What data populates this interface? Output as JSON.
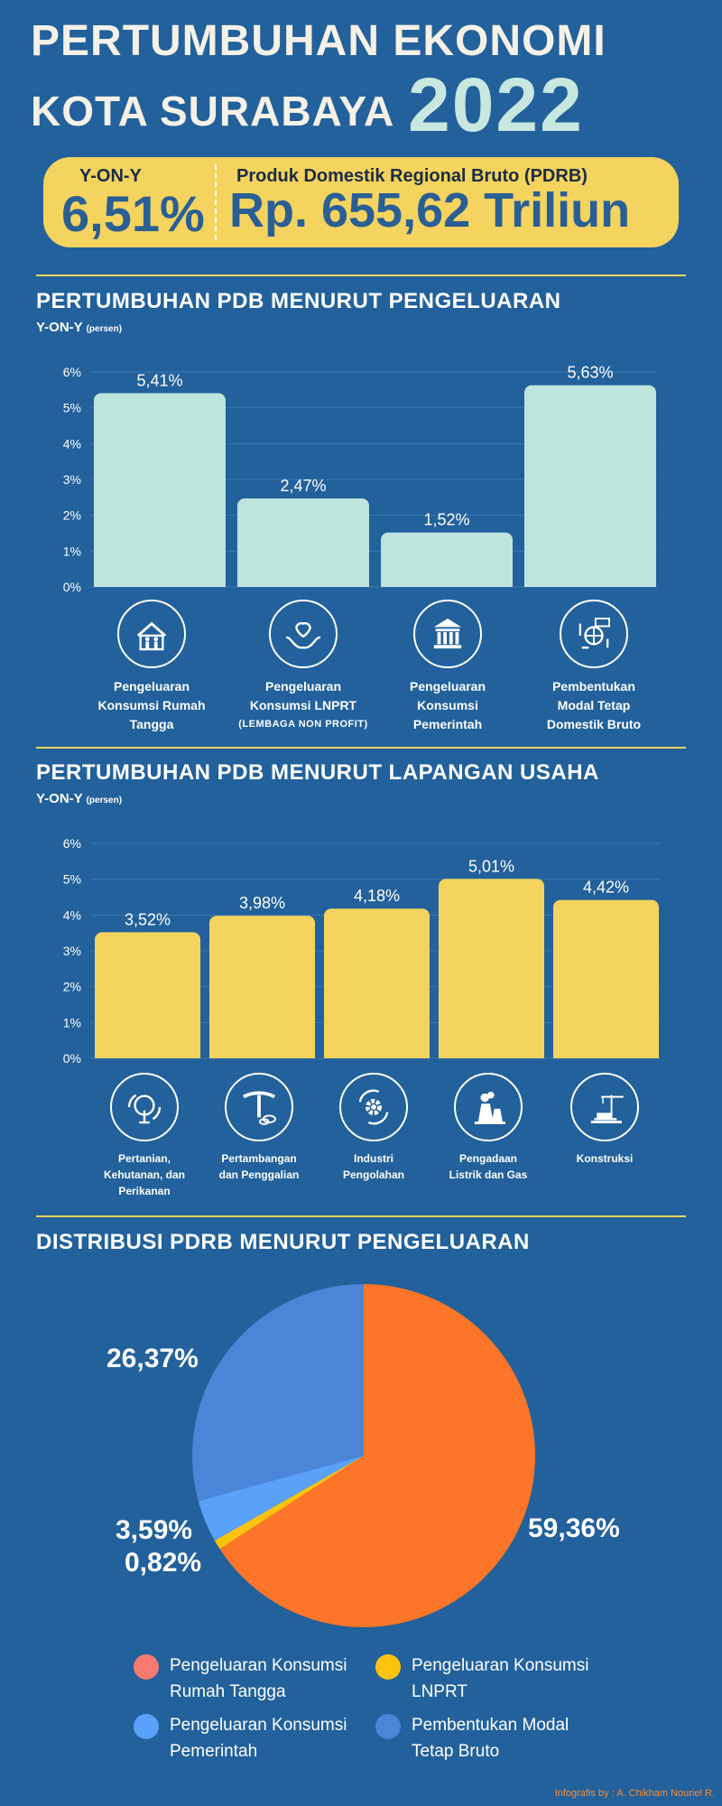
{
  "header": {
    "title_line1": "PERTUMBUHAN EKONOMI",
    "title_line2": "KOTA SURABAYA",
    "year": "2022"
  },
  "kpi": {
    "growth_label": "Y-ON-Y",
    "growth_value": "6,51%",
    "pdrb_label": "Produk Domestik Regional Bruto (PDRB)",
    "pdrb_value": "Rp. 655,62 Triliun"
  },
  "section1": {
    "title": "PERTUMBUHAN PDB MENURUT PENGELUARAN",
    "subtitle": "Y-ON-Y",
    "subtitle_note": "(persen)",
    "categories": [
      {
        "lines": [
          "Pengeluaran",
          "Konsumsi Rumah",
          "Tangga"
        ],
        "note": "",
        "icon": "family-house-icon"
      },
      {
        "lines": [
          "Pengeluaran",
          "Konsumsi LNPRT"
        ],
        "note": "(LEMBAGA NON PROFIT)",
        "icon": "charity-hands-icon"
      },
      {
        "lines": [
          "Pengeluaran",
          "Konsumsi",
          "Pemerintah"
        ],
        "note": "",
        "icon": "government-building-icon"
      },
      {
        "lines": [
          "Pembentukan",
          "Modal Tetap",
          "Domestik Bruto"
        ],
        "note": "",
        "icon": "gdp-globe-icon"
      }
    ]
  },
  "section2": {
    "title": "PERTUMBUHAN PDB MENURUT LAPANGAN USAHA",
    "subtitle": "Y-ON-Y",
    "subtitle_note": "(persen)",
    "categories": [
      {
        "lines": [
          "Pertanian,",
          "Kehutanan, dan",
          "Perikanan"
        ],
        "icon": "tree-icon"
      },
      {
        "lines": [
          "Pertambangan",
          "dan Penggalian"
        ],
        "icon": "pickaxe-icon"
      },
      {
        "lines": [
          "Industri",
          "Pengolahan"
        ],
        "icon": "gear-cycle-icon"
      },
      {
        "lines": [
          "Pengadaan",
          "Listrik dan Gas"
        ],
        "icon": "power-plant-icon"
      },
      {
        "lines": [
          "Konstruksi"
        ],
        "icon": "crane-icon"
      }
    ]
  },
  "section3": {
    "title": "DISTRIBUSI PDRB MENURUT PENGELUARAN"
  },
  "chart_data": [
    {
      "type": "bar",
      "title": "PERTUMBUHAN PDB MENURUT PENGELUARAN",
      "ylabel": "Y-ON-Y (persen)",
      "categories": [
        "Pengeluaran Konsumsi Rumah Tangga",
        "Pengeluaran Konsumsi LNPRT",
        "Pengeluaran Konsumsi Pemerintah",
        "Pembentukan Modal Tetap Domestik Bruto"
      ],
      "values": [
        5.41,
        2.47,
        1.52,
        5.63
      ],
      "value_labels": [
        "5,41%",
        "2,47%",
        "1,52%",
        "5,63%"
      ],
      "yticks": [
        "0%",
        "1%",
        "2%",
        "3%",
        "4%",
        "5%",
        "6%"
      ],
      "ylim": [
        0,
        6
      ],
      "color": "#bde4dd"
    },
    {
      "type": "bar",
      "title": "PERTUMBUHAN PDB MENURUT LAPANGAN USAHA",
      "ylabel": "Y-ON-Y (persen)",
      "categories": [
        "Pertanian, Kehutanan, dan Perikanan",
        "Pertambangan dan Penggalian",
        "Industri Pengolahan",
        "Pengadaan Listrik dan Gas",
        "Konstruksi"
      ],
      "values": [
        3.52,
        3.98,
        4.18,
        5.01,
        4.42
      ],
      "value_labels": [
        "3,52%",
        "3,98%",
        "4,18%",
        "5,01%",
        "4,42%"
      ],
      "yticks": [
        "0%",
        "1%",
        "2%",
        "3%",
        "4%",
        "5%",
        "6%"
      ],
      "ylim": [
        0,
        6
      ],
      "color": "#f4d35e"
    },
    {
      "type": "pie",
      "title": "DISTRIBUSI PDRB MENURUT PENGELUARAN",
      "slices": [
        {
          "name": "Pengeluaran Konsumsi Rumah Tangga",
          "value": 59.36,
          "label": "59,36%",
          "color": "#fc7528",
          "legend_lines": [
            "Pengeluaran Konsumsi",
            "Rumah Tangga"
          ],
          "legend_color": "#f77a6f"
        },
        {
          "name": "Pengeluaran Konsumsi LNPRT",
          "value": 0.82,
          "label": "0,82%",
          "color": "#fcc30e",
          "legend_lines": [
            "Pengeluaran Konsumsi",
            "LNPRT"
          ],
          "legend_color": "#fcc30e"
        },
        {
          "name": "Pengeluaran Konsumsi Pemerintah",
          "value": 3.59,
          "label": "3,59%",
          "color": "#5aa1fa",
          "legend_lines": [
            "Pengeluaran Konsumsi",
            "Pemerintah"
          ],
          "legend_color": "#5aa1fa"
        },
        {
          "name": "Pembentukan Modal Tetap Bruto",
          "value": 26.37,
          "label": "26,37%",
          "color": "#4a85d8",
          "legend_lines": [
            "Pembentukan Modal",
            "Tetap Bruto"
          ],
          "legend_color": "#4a85d8"
        }
      ]
    }
  ],
  "credit": "Infografis by : A. Chikham Nouriel R."
}
